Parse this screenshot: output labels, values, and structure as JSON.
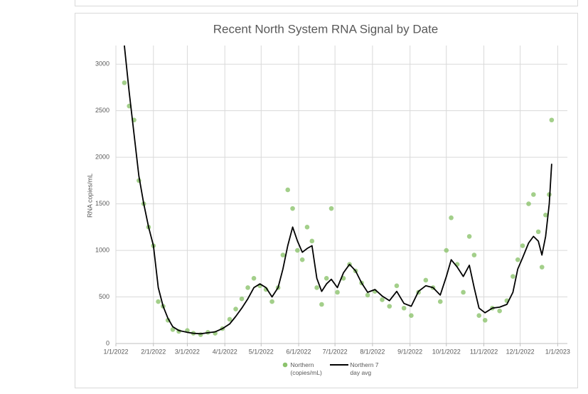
{
  "chart_data": {
    "type": "scatter-line",
    "title": "Recent North System RNA Signal by Date",
    "y_label": "RNA copies/mL",
    "xlim": [
      "2022-01-01",
      "2023-01-09"
    ],
    "xticks": [
      {
        "value": "2022-01-01",
        "label": "1/1/2022"
      },
      {
        "value": "2022-02-01",
        "label": "2/1/2022"
      },
      {
        "value": "2022-03-01",
        "label": "3/1/2022"
      },
      {
        "value": "2022-04-01",
        "label": "4/1/2022"
      },
      {
        "value": "2022-05-01",
        "label": "5/1/2022"
      },
      {
        "value": "2022-06-01",
        "label": "6/1/2022"
      },
      {
        "value": "2022-07-01",
        "label": "7/1/2022"
      },
      {
        "value": "2022-08-01",
        "label": "8/1/2022"
      },
      {
        "value": "2022-09-01",
        "label": "9/1/2022"
      },
      {
        "value": "2022-10-01",
        "label": "10/1/2022"
      },
      {
        "value": "2022-11-01",
        "label": "11/1/2022"
      },
      {
        "value": "2022-12-01",
        "label": "12/1/2022"
      },
      {
        "value": "2023-01-01",
        "label": "1/1/2023"
      }
    ],
    "ylim": [
      0,
      3200
    ],
    "yticks": [
      0,
      500,
      1000,
      1500,
      2000,
      2500,
      3000
    ],
    "grid": true,
    "x": [
      "2022-01-08",
      "2022-01-12",
      "2022-01-16",
      "2022-01-20",
      "2022-01-24",
      "2022-01-28",
      "2022-02-01",
      "2022-02-05",
      "2022-02-09",
      "2022-02-13",
      "2022-02-17",
      "2022-02-22",
      "2022-03-01",
      "2022-03-06",
      "2022-03-12",
      "2022-03-18",
      "2022-03-24",
      "2022-03-30",
      "2022-04-05",
      "2022-04-10",
      "2022-04-15",
      "2022-04-20",
      "2022-04-25",
      "2022-04-30",
      "2022-05-05",
      "2022-05-10",
      "2022-05-15",
      "2022-05-19",
      "2022-05-23",
      "2022-05-27",
      "2022-05-31",
      "2022-06-04",
      "2022-06-08",
      "2022-06-12",
      "2022-06-16",
      "2022-06-20",
      "2022-06-24",
      "2022-06-28",
      "2022-07-03",
      "2022-07-08",
      "2022-07-13",
      "2022-07-18",
      "2022-07-23",
      "2022-07-28",
      "2022-08-03",
      "2022-08-09",
      "2022-08-15",
      "2022-08-21",
      "2022-08-27",
      "2022-09-02",
      "2022-09-08",
      "2022-09-14",
      "2022-09-20",
      "2022-09-26",
      "2022-10-01",
      "2022-10-05",
      "2022-10-10",
      "2022-10-15",
      "2022-10-20",
      "2022-10-24",
      "2022-10-28",
      "2022-11-02",
      "2022-11-08",
      "2022-11-14",
      "2022-11-20",
      "2022-11-25",
      "2022-11-29",
      "2022-12-03",
      "2022-12-08",
      "2022-12-12",
      "2022-12-16",
      "2022-12-19",
      "2022-12-22",
      "2022-12-25",
      "2022-12-27"
    ],
    "series": [
      {
        "name": "Northern (copies/mL)",
        "color": "#8cc36d",
        "values": [
          2800,
          2550,
          2400,
          1750,
          1500,
          1250,
          1050,
          450,
          400,
          250,
          150,
          130,
          140,
          110,
          95,
          120,
          110,
          160,
          260,
          370,
          480,
          600,
          700,
          620,
          580,
          450,
          600,
          950,
          1650,
          1450,
          1000,
          900,
          1250,
          1100,
          600,
          420,
          700,
          1450,
          550,
          700,
          850,
          780,
          650,
          520,
          560,
          470,
          400,
          620,
          380,
          300,
          550,
          680,
          600,
          450,
          1000,
          1350,
          850,
          550,
          1150,
          950,
          300,
          250,
          380,
          350,
          460,
          720,
          900,
          1050,
          1500,
          1600,
          1200,
          820,
          1380,
          1600,
          2400
        ]
      },
      {
        "name": "Northern 7 day avg",
        "color": "#000000",
        "values": [
          3200,
          2700,
          2250,
          1800,
          1500,
          1250,
          1050,
          600,
          400,
          270,
          180,
          140,
          120,
          110,
          105,
          115,
          125,
          160,
          210,
          290,
          380,
          480,
          600,
          640,
          600,
          500,
          600,
          800,
          1050,
          1250,
          1100,
          980,
          1020,
          1050,
          700,
          560,
          640,
          690,
          600,
          760,
          850,
          780,
          650,
          550,
          580,
          510,
          460,
          560,
          430,
          400,
          560,
          620,
          600,
          520,
          720,
          900,
          820,
          720,
          840,
          600,
          380,
          330,
          380,
          390,
          420,
          550,
          800,
          920,
          1080,
          1150,
          1100,
          950,
          1150,
          1500,
          1930
        ]
      }
    ],
    "legend_position": "bottom"
  }
}
